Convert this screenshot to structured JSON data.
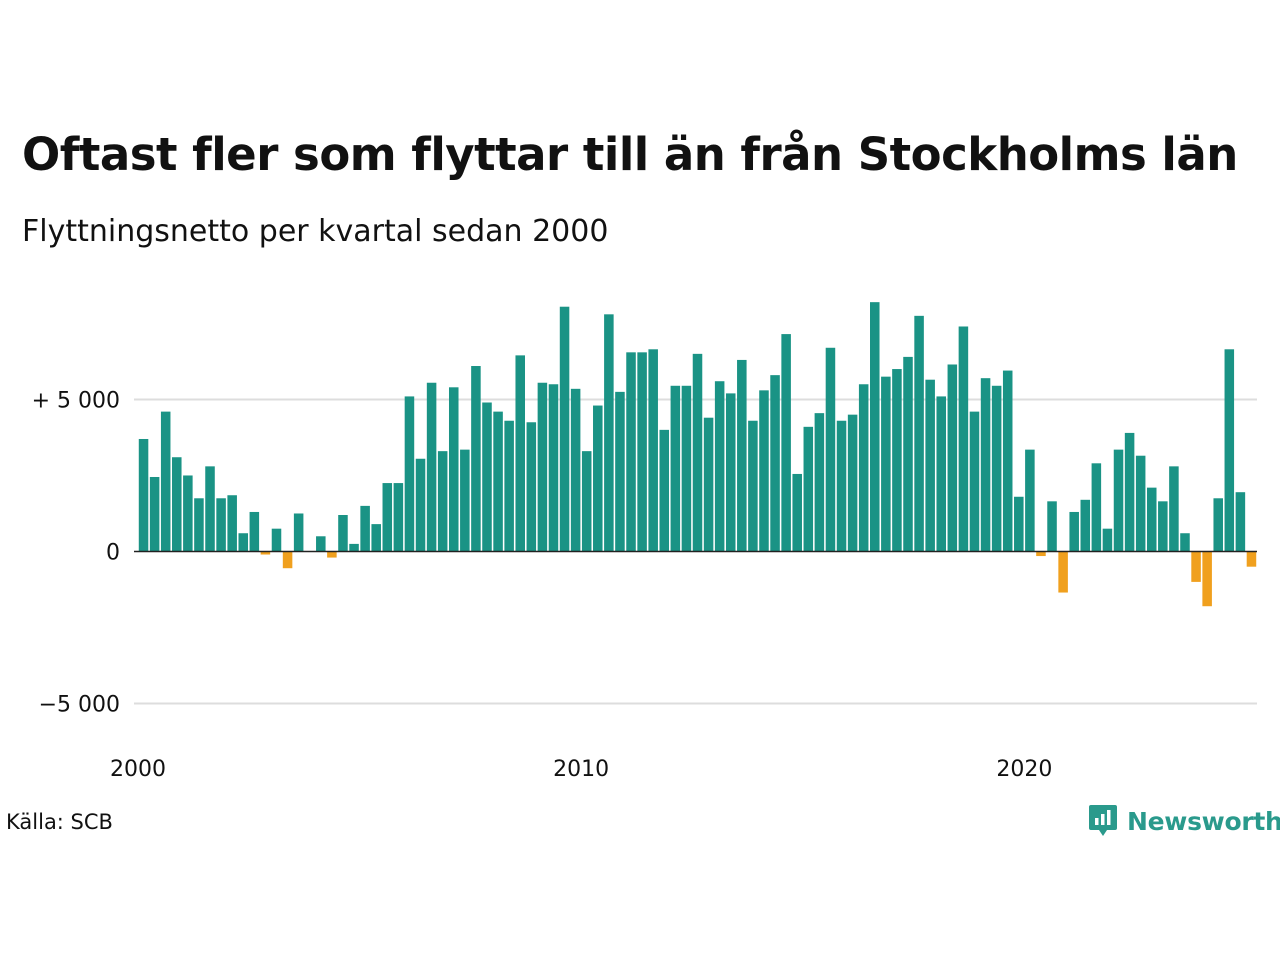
{
  "title": "Oftast fler som flyttar till än från Stockholms län",
  "subtitle": "Flyttningsnetto per kvartal sedan 2000",
  "source": "Källa: SCB",
  "brand": {
    "name": "Newsworthy",
    "icon": "newsworthy-logo-icon",
    "color": "#2a9a8c"
  },
  "chart_data": {
    "type": "bar",
    "title": "Oftast fler som flyttar till än från Stockholms län",
    "subtitle": "Flyttningsnetto per kvartal sedan 2000",
    "xlabel": "",
    "ylabel": "",
    "x_start": 2000,
    "periods_per_year": 4,
    "ylim": [
      -6200,
      8600
    ],
    "yticks": [
      -5000,
      0,
      5000
    ],
    "ytick_labels": [
      "−5 000",
      "0",
      "+ 5 000"
    ],
    "xticks": [
      2000,
      2010,
      2020
    ],
    "xtick_labels": [
      "2000",
      "2010",
      "2020"
    ],
    "grid": true,
    "colors": {
      "positive": "#1a9385",
      "negative": "#f0a01e",
      "grid": "#dddddd",
      "baseline": "#222222"
    },
    "values": [
      3700,
      2450,
      4600,
      3100,
      2500,
      1750,
      2800,
      1750,
      1850,
      600,
      1300,
      -100,
      750,
      -550,
      1250,
      0,
      500,
      -200,
      1200,
      250,
      1500,
      900,
      2250,
      2250,
      5100,
      3050,
      5550,
      3300,
      5400,
      3350,
      6100,
      4900,
      4600,
      4300,
      6450,
      4250,
      5550,
      5500,
      8050,
      5350,
      3300,
      4800,
      7800,
      5250,
      6550,
      6550,
      6650,
      4000,
      5450,
      5450,
      6500,
      4400,
      5600,
      5200,
      6300,
      4300,
      5300,
      5800,
      7150,
      2550,
      4100,
      4550,
      6700,
      4300,
      4500,
      5500,
      8200,
      5750,
      6000,
      6400,
      7750,
      5650,
      5100,
      6150,
      7400,
      4600,
      5700,
      5450,
      5950,
      1800,
      3350,
      -150,
      1650,
      -1350,
      1300,
      1700,
      2900,
      750,
      3350,
      3900,
      3150,
      2100,
      1650,
      2800,
      600,
      -1000,
      -1800,
      1750,
      6650,
      1950,
      -500
    ]
  }
}
